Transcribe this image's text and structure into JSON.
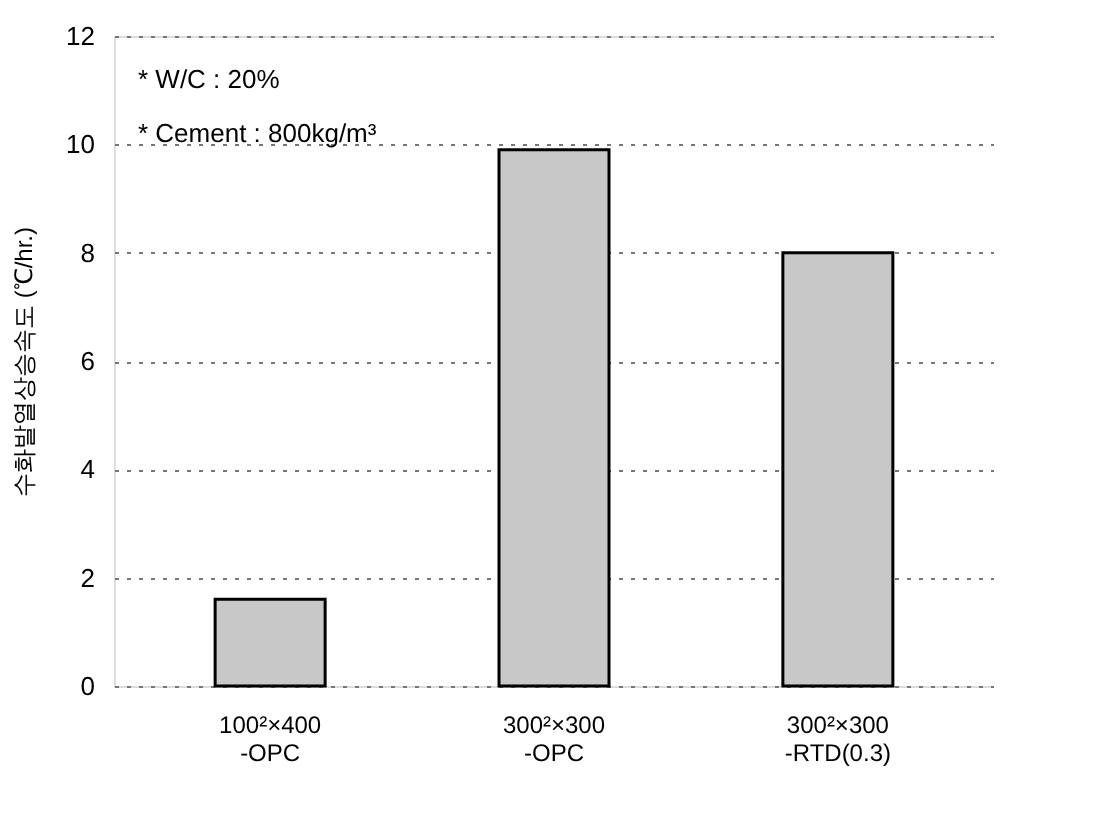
{
  "chart_data": {
    "type": "bar",
    "ylabel": "수화발열상승속도 (℃/hr.)",
    "categories": [
      "100²×400\n-OPC",
      "300²×300\n-OPC",
      "300²×300\n-RTD(0.3)"
    ],
    "values": [
      1.6,
      9.9,
      8.0
    ],
    "color": "#c8c8c8",
    "ylim": [
      0,
      12
    ],
    "yticks": [
      0,
      2,
      4,
      6,
      8,
      10,
      12
    ],
    "grid": "y",
    "annotations": [
      "* W/C : 20%",
      "* Cement : 800kg/m³"
    ]
  }
}
